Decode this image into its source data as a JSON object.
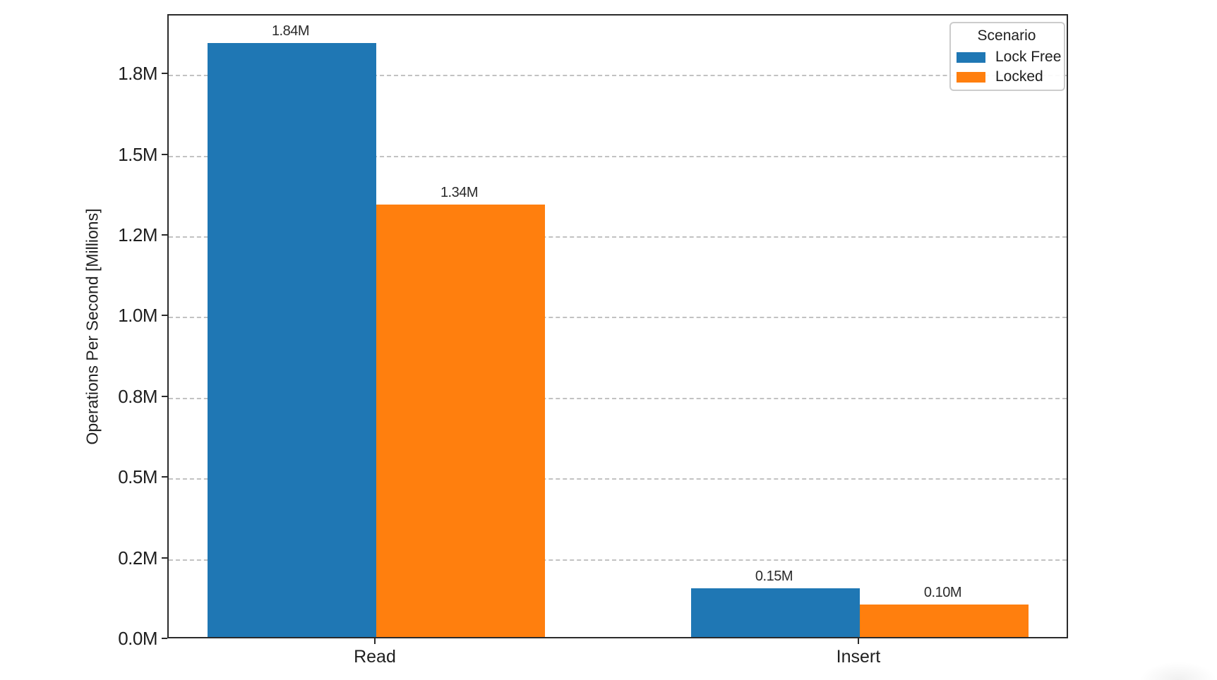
{
  "chart_data": {
    "type": "bar",
    "title": "",
    "categories": [
      "Read",
      "Insert"
    ],
    "series": [
      {
        "name": "Lock Free",
        "color": "#1f77b4",
        "values": [
          1.84,
          0.15
        ],
        "value_labels": [
          "1.84M",
          "0.15M"
        ]
      },
      {
        "name": "Locked",
        "color": "#ff7f0e",
        "values": [
          1.34,
          0.1
        ],
        "value_labels": [
          "1.34M",
          "0.10M"
        ]
      }
    ],
    "xlabel": "",
    "ylabel": "Operations Per Second [Millions]",
    "ylim": [
      0,
      1.934
    ],
    "yticks": [
      {
        "value": 0.0,
        "label": "0.0M"
      },
      {
        "value": 0.25,
        "label": "0.2M"
      },
      {
        "value": 0.5,
        "label": "0.5M"
      },
      {
        "value": 0.75,
        "label": "0.8M"
      },
      {
        "value": 1.0,
        "label": "1.0M"
      },
      {
        "value": 1.25,
        "label": "1.2M"
      },
      {
        "value": 1.5,
        "label": "1.5M"
      },
      {
        "value": 1.75,
        "label": "1.8M"
      }
    ],
    "grid": "horizontal-dashed",
    "legend": {
      "title": "Scenario",
      "position": "upper-right"
    }
  }
}
